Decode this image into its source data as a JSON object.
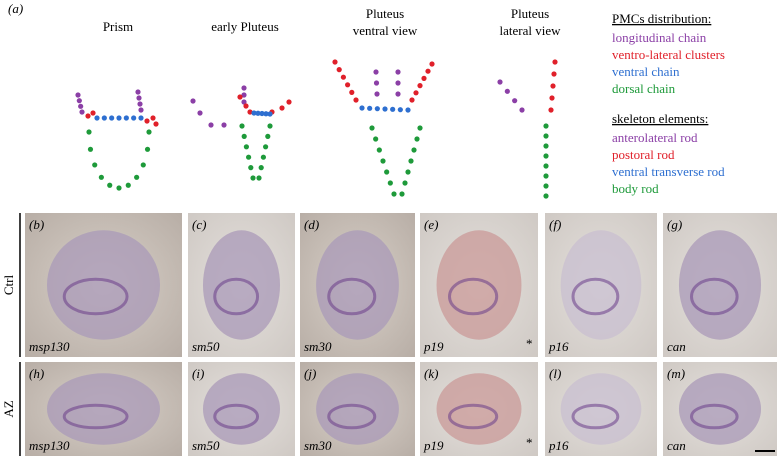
{
  "panel_a": {
    "label": "(a)",
    "stages": [
      {
        "lines": [
          "Prism"
        ]
      },
      {
        "lines": [
          "early Pluteus"
        ]
      },
      {
        "lines": [
          "Pluteus",
          "ventral view"
        ]
      },
      {
        "lines": [
          "Pluteus",
          "lateral view"
        ]
      }
    ],
    "pmc_title": "PMCs distribution:",
    "pmc_items": [
      {
        "text": "longitudinal chain",
        "color": "#8b3fa6"
      },
      {
        "text": "ventro-lateral clusters",
        "color": "#e0202a"
      },
      {
        "text": "ventral chain",
        "color": "#2e6fd0"
      },
      {
        "text": "dorsal chain",
        "color": "#1e9a3a"
      }
    ],
    "skeleton_title": "skeleton elements:",
    "skeleton_items": [
      {
        "text": "anterolateral rod",
        "color": "#8b3fa6"
      },
      {
        "text": "postoral rod",
        "color": "#e0202a"
      },
      {
        "text": "ventral transverse rod",
        "color": "#2e6fd0"
      },
      {
        "text": "body rod",
        "color": "#1e9a3a"
      }
    ]
  },
  "rows": [
    {
      "label": "Ctrl",
      "panels": [
        {
          "label": "(b)",
          "gene": "msp130"
        },
        {
          "label": "(c)",
          "gene": "sm50"
        },
        {
          "label": "(d)",
          "gene": "sm30"
        },
        {
          "label": "(e)",
          "gene": "p19",
          "marker": "*"
        },
        {
          "label": "(f)",
          "gene": "p16"
        },
        {
          "label": "(g)",
          "gene": "can"
        }
      ]
    },
    {
      "label": "AZ",
      "panels": [
        {
          "label": "(h)",
          "gene": "msp130"
        },
        {
          "label": "(i)",
          "gene": "sm50"
        },
        {
          "label": "(j)",
          "gene": "sm30"
        },
        {
          "label": "(k)",
          "gene": "p19",
          "marker": "*"
        },
        {
          "label": "(l)",
          "gene": "p16"
        },
        {
          "label": "(m)",
          "gene": "can"
        }
      ]
    }
  ]
}
